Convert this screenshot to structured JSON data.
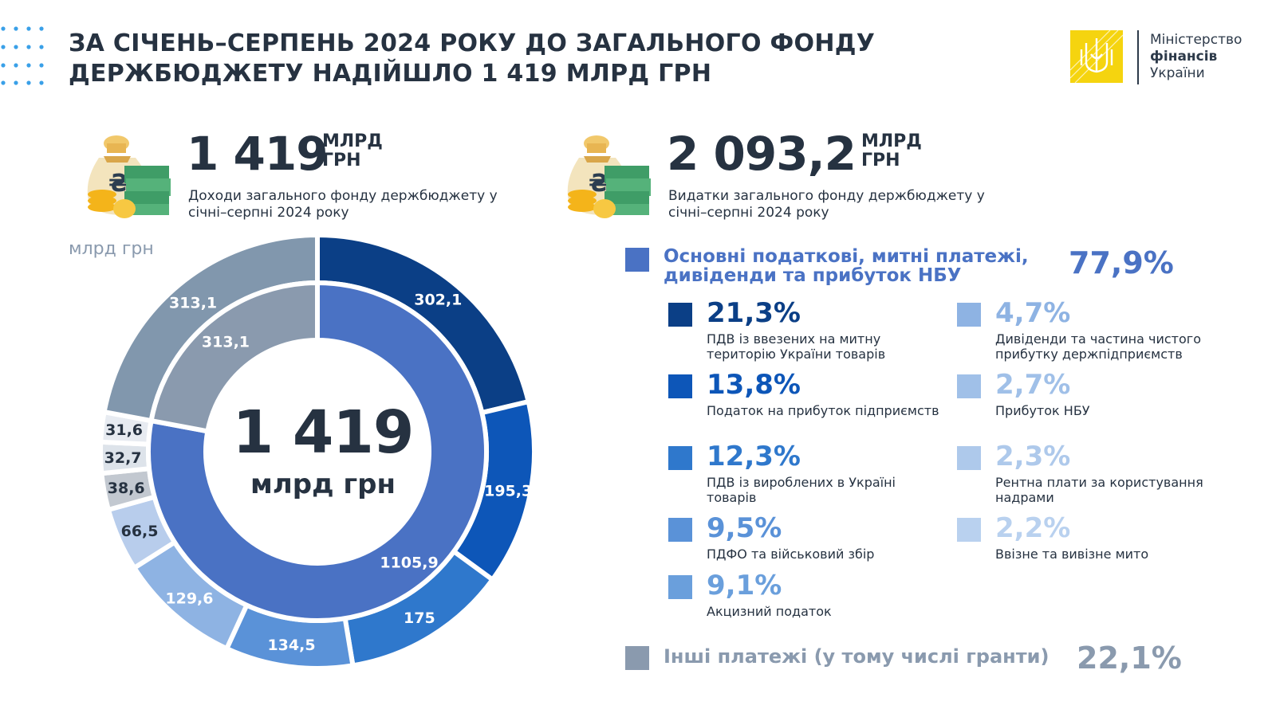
{
  "title": "ЗА СІЧЕНЬ–СЕРПЕНЬ 2024 РОКУ ДО ЗАГАЛЬНОГО ФОНДУ ДЕРЖБЮДЖЕТУ НАДІЙШЛО 1 419 МЛРД ГРН",
  "logo": {
    "line1": "Міністерство",
    "line2": "фінансів",
    "line3": "України"
  },
  "kpi_revenue": {
    "value": "1 419",
    "unit": "МЛРД ГРН",
    "desc": "Доходи загального фонду держбюджету у січні–серпні 2024 року"
  },
  "kpi_expenses": {
    "value": "2 093,2",
    "unit": "МЛРД ГРН",
    "desc": "Видатки загального фонду держбюджету у січні–серпні 2024 року"
  },
  "chart_unit": "млрд грн",
  "center": {
    "value": "1 419",
    "unit": "млрд грн"
  },
  "colors": {
    "main": "#4a72c4",
    "other": "#8a9aae",
    "title": "#263241"
  },
  "legend_main": {
    "label": "Основні податкові, митні платежі, дивіденди та прибуток НБУ",
    "pct": "77,9%"
  },
  "legend_other": {
    "label": "Інші платежі (у тому числі гранти)",
    "pct": "22,1%"
  },
  "legend_items": [
    {
      "pct": "21,3%",
      "label": "ПДВ із ввезених на митну територію України товарів",
      "color": "#0b3f86"
    },
    {
      "pct": "13,8%",
      "label": "Податок на прибуток підприємств",
      "color": "#0d56b8"
    },
    {
      "pct": "12,3%",
      "label": "ПДВ із вироблених в Україні товарів",
      "color": "#2f78cc"
    },
    {
      "pct": "9,5%",
      "label": "ПДФО та військовий збір",
      "color": "#5a92d8"
    },
    {
      "pct": "9,1%",
      "label": "Акцизний податок",
      "color": "#6a9fdc"
    },
    {
      "pct": "4,7%",
      "label": "Дивіденди та частина чистого прибутку держпідприємств",
      "color": "#8eb3e3"
    },
    {
      "pct": "2,7%",
      "label": "Прибуток НБУ",
      "color": "#a0c0e8"
    },
    {
      "pct": "2,3%",
      "label": "Рентна плати за користування надрами",
      "color": "#aec9eb"
    },
    {
      "pct": "2,2%",
      "label": "Ввізне та вивізне мито",
      "color": "#b9d1ef"
    }
  ],
  "chart_data": {
    "type": "pie",
    "unit": "млрд грн",
    "total": 1419,
    "inner_ring": [
      {
        "name": "Основні податкові, митні платежі, дивіденди та прибуток НБУ",
        "value": 1105.9,
        "label": "1105,9",
        "color": "#4a72c4"
      },
      {
        "name": "Інші платежі (у тому числі гранти)",
        "value": 313.1,
        "label": "313,1",
        "color": "#8a9aae"
      }
    ],
    "outer_ring": [
      {
        "name": "ПДВ із ввезених на митну територію України товарів",
        "value": 302.1,
        "label": "302,1",
        "color": "#0b3f86",
        "text_color": "#ffffff"
      },
      {
        "name": "Податок на прибуток підприємств",
        "value": 195.3,
        "label": "195,3",
        "color": "#0d56b8",
        "text_color": "#ffffff"
      },
      {
        "name": "ПДВ із вироблених в Україні товарів",
        "value": 175,
        "label": "175",
        "color": "#2f78cc",
        "text_color": "#ffffff"
      },
      {
        "name": "ПДФО та військовий збір",
        "value": 134.5,
        "label": "134,5",
        "color": "#5a92d8",
        "text_color": "#ffffff"
      },
      {
        "name": "Акцизний податок",
        "value": 129.6,
        "label": "129,6",
        "color": "#8eb3e3",
        "text_color": "#ffffff"
      },
      {
        "name": "Дивіденди та частина чистого прибутку держпідприємств",
        "value": 66.5,
        "label": "66,5",
        "color": "#b8cdec",
        "text_color": "#263241"
      },
      {
        "name": "Прибуток НБУ",
        "value": 38.6,
        "label": "38,6",
        "color": "#c2c8d0",
        "text_color": "#263241"
      },
      {
        "name": "Рентна плати за користування надрами",
        "value": 32.7,
        "label": "32,7",
        "color": "#dde3ea",
        "text_color": "#263241"
      },
      {
        "name": "Ввізне та вивізне мито",
        "value": 31.6,
        "label": "31,6",
        "color": "#e7ebf1",
        "text_color": "#263241"
      },
      {
        "name": "Інші платежі (у тому числі гранти)",
        "value": 313.1,
        "label": "313,1",
        "color": "#8197ad",
        "text_color": "#ffffff"
      }
    ]
  }
}
